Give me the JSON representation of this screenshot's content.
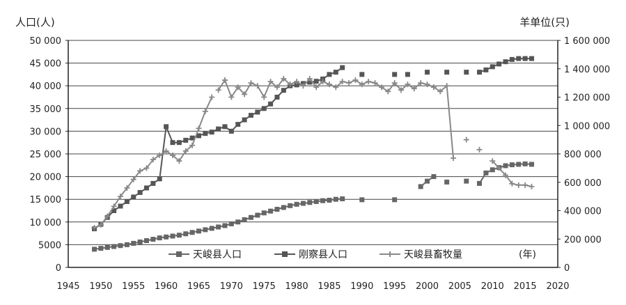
{
  "chart_data": {
    "type": "line",
    "y_left_title": "人口(人)",
    "y_right_title": "羊单位(只)",
    "x_unit": "(年)",
    "x_ticks": [
      "1945",
      "1950",
      "1955",
      "1960",
      "1965",
      "1970",
      "1975",
      "1980",
      "1985",
      "1990",
      "1995",
      "2000",
      "2005",
      "2010",
      "2015",
      "2020"
    ],
    "y_left_ticks": [
      "0",
      "5000",
      "10 000",
      "15 000",
      "20 000",
      "25 000",
      "30 000",
      "35 000",
      "40 000",
      "45 000",
      "50 000"
    ],
    "y_right_ticks": [
      "0",
      "200 000",
      "400 000",
      "600 000",
      "800 000",
      "1 000 000",
      "1 200 000",
      "1 400 000",
      "1 600 000"
    ],
    "xlim": [
      1945,
      2020
    ],
    "ylim_left": [
      0,
      50000
    ],
    "ylim_right": [
      0,
      1600000
    ],
    "grid": "horizontal",
    "legend_position": "bottom",
    "series": [
      {
        "name": "天峻县人口",
        "axis": "left",
        "color": "#666666",
        "segments": [
          [
            [
              1949,
              4000
            ],
            [
              1950,
              4200
            ],
            [
              1951,
              4400
            ],
            [
              1952,
              4600
            ],
            [
              1953,
              4800
            ],
            [
              1954,
              5000
            ],
            [
              1955,
              5300
            ],
            [
              1956,
              5600
            ],
            [
              1957,
              5900
            ],
            [
              1958,
              6200
            ],
            [
              1959,
              6500
            ],
            [
              1960,
              6700
            ],
            [
              1961,
              6900
            ],
            [
              1962,
              7100
            ],
            [
              1963,
              7400
            ],
            [
              1964,
              7700
            ],
            [
              1965,
              8000
            ],
            [
              1966,
              8300
            ],
            [
              1967,
              8600
            ],
            [
              1968,
              8900
            ],
            [
              1969,
              9200
            ],
            [
              1970,
              9600
            ],
            [
              1971,
              10000
            ],
            [
              1972,
              10500
            ],
            [
              1973,
              11000
            ],
            [
              1974,
              11500
            ],
            [
              1975,
              12000
            ],
            [
              1976,
              12400
            ],
            [
              1977,
              12800
            ],
            [
              1978,
              13200
            ],
            [
              1979,
              13600
            ],
            [
              1980,
              13900
            ],
            [
              1981,
              14100
            ],
            [
              1982,
              14300
            ],
            [
              1983,
              14500
            ],
            [
              1984,
              14700
            ],
            [
              1985,
              14800
            ],
            [
              1986,
              15000
            ],
            [
              1987,
              15100
            ]
          ],
          [
            [
              1990,
              14900
            ]
          ],
          [
            [
              1995,
              14900
            ]
          ],
          [
            [
              1999,
              17800
            ],
            [
              2000,
              19000
            ],
            [
              2001,
              20000
            ]
          ],
          [
            [
              2003,
              18800
            ]
          ],
          [
            [
              2006,
              19000
            ]
          ],
          [
            [
              2008,
              18500
            ],
            [
              2009,
              20800
            ],
            [
              2010,
              21500
            ],
            [
              2011,
              22000
            ],
            [
              2012,
              22400
            ],
            [
              2013,
              22600
            ],
            [
              2014,
              22700
            ],
            [
              2015,
              22800
            ],
            [
              2016,
              22700
            ]
          ]
        ]
      },
      {
        "name": "刚察县人口",
        "axis": "left",
        "color": "#555555",
        "segments": [
          [
            [
              1949,
              8500
            ],
            [
              1950,
              9500
            ],
            [
              1951,
              11000
            ],
            [
              1952,
              12500
            ],
            [
              1953,
              13500
            ],
            [
              1954,
              14500
            ],
            [
              1955,
              15500
            ],
            [
              1956,
              16500
            ],
            [
              1957,
              17500
            ],
            [
              1958,
              18500
            ],
            [
              1959,
              19500
            ],
            [
              1960,
              31000
            ],
            [
              1961,
              27500
            ],
            [
              1962,
              27500
            ],
            [
              1963,
              28000
            ],
            [
              1964,
              28500
            ],
            [
              1965,
              29000
            ],
            [
              1966,
              29500
            ],
            [
              1967,
              29800
            ],
            [
              1968,
              30500
            ],
            [
              1969,
              31000
            ],
            [
              1970,
              30000
            ],
            [
              1971,
              31500
            ],
            [
              1972,
              32500
            ],
            [
              1973,
              33500
            ],
            [
              1974,
              34200
            ],
            [
              1975,
              35000
            ],
            [
              1976,
              36000
            ],
            [
              1977,
              37500
            ],
            [
              1978,
              39000
            ],
            [
              1979,
              40000
            ],
            [
              1980,
              40200
            ],
            [
              1981,
              40500
            ],
            [
              1982,
              40800
            ],
            [
              1983,
              41000
            ],
            [
              1984,
              41500
            ],
            [
              1985,
              42500
            ],
            [
              1986,
              43000
            ],
            [
              1987,
              44000
            ]
          ],
          [
            [
              1990,
              42500
            ]
          ],
          [
            [
              1995,
              42500
            ]
          ],
          [
            [
              1997,
              42500
            ]
          ],
          [
            [
              2000,
              43000
            ]
          ],
          [
            [
              2003,
              43000
            ]
          ],
          [
            [
              2006,
              43000
            ]
          ],
          [
            [
              2008,
              43000
            ],
            [
              2009,
              43500
            ],
            [
              2010,
              44200
            ],
            [
              2011,
              44800
            ],
            [
              2012,
              45300
            ],
            [
              2013,
              45800
            ],
            [
              2014,
              46000
            ],
            [
              2015,
              46000
            ],
            [
              2016,
              46000
            ]
          ]
        ]
      },
      {
        "name": "天峻县畜牧量",
        "axis": "right",
        "color": "#888888",
        "segments": [
          [
            [
              1949,
              280000
            ],
            [
              1950,
              300000
            ],
            [
              1951,
              360000
            ],
            [
              1952,
              430000
            ],
            [
              1953,
              500000
            ],
            [
              1954,
              560000
            ],
            [
              1955,
              620000
            ],
            [
              1956,
              680000
            ],
            [
              1957,
              700000
            ],
            [
              1958,
              760000
            ],
            [
              1959,
              790000
            ],
            [
              1960,
              820000
            ],
            [
              1961,
              790000
            ],
            [
              1962,
              750000
            ],
            [
              1963,
              820000
            ],
            [
              1964,
              860000
            ],
            [
              1965,
              980000
            ],
            [
              1966,
              1100000
            ],
            [
              1967,
              1200000
            ]
          ],
          [
            [
              1968,
              1250000
            ],
            [
              1969,
              1320000
            ],
            [
              1970,
              1200000
            ],
            [
              1971,
              1270000
            ],
            [
              1972,
              1220000
            ],
            [
              1973,
              1300000
            ],
            [
              1974,
              1280000
            ],
            [
              1975,
              1200000
            ],
            [
              1976,
              1310000
            ],
            [
              1977,
              1270000
            ],
            [
              1978,
              1330000
            ],
            [
              1979,
              1290000
            ],
            [
              1980,
              1310000
            ],
            [
              1981,
              1280000
            ],
            [
              1982,
              1330000
            ],
            [
              1983,
              1270000
            ],
            [
              1984,
              1310000
            ],
            [
              1985,
              1290000
            ],
            [
              1986,
              1270000
            ],
            [
              1987,
              1310000
            ],
            [
              1988,
              1300000
            ],
            [
              1989,
              1320000
            ],
            [
              1990,
              1290000
            ],
            [
              1991,
              1310000
            ],
            [
              1992,
              1300000
            ],
            [
              1993,
              1270000
            ],
            [
              1994,
              1240000
            ],
            [
              1995,
              1300000
            ],
            [
              1996,
              1250000
            ],
            [
              1997,
              1290000
            ],
            [
              1998,
              1260000
            ],
            [
              1999,
              1300000
            ],
            [
              2000,
              1290000
            ],
            [
              2001,
              1270000
            ],
            [
              2002,
              1240000
            ],
            [
              2003,
              1280000
            ],
            [
              2004,
              770000
            ]
          ],
          [
            [
              2006,
              900000
            ]
          ],
          [
            [
              2008,
              830000
            ]
          ],
          [
            [
              2010,
              750000
            ],
            [
              2011,
              700000
            ],
            [
              2012,
              650000
            ],
            [
              2013,
              590000
            ],
            [
              2014,
              580000
            ],
            [
              2015,
              580000
            ],
            [
              2016,
              570000
            ]
          ]
        ]
      }
    ]
  }
}
